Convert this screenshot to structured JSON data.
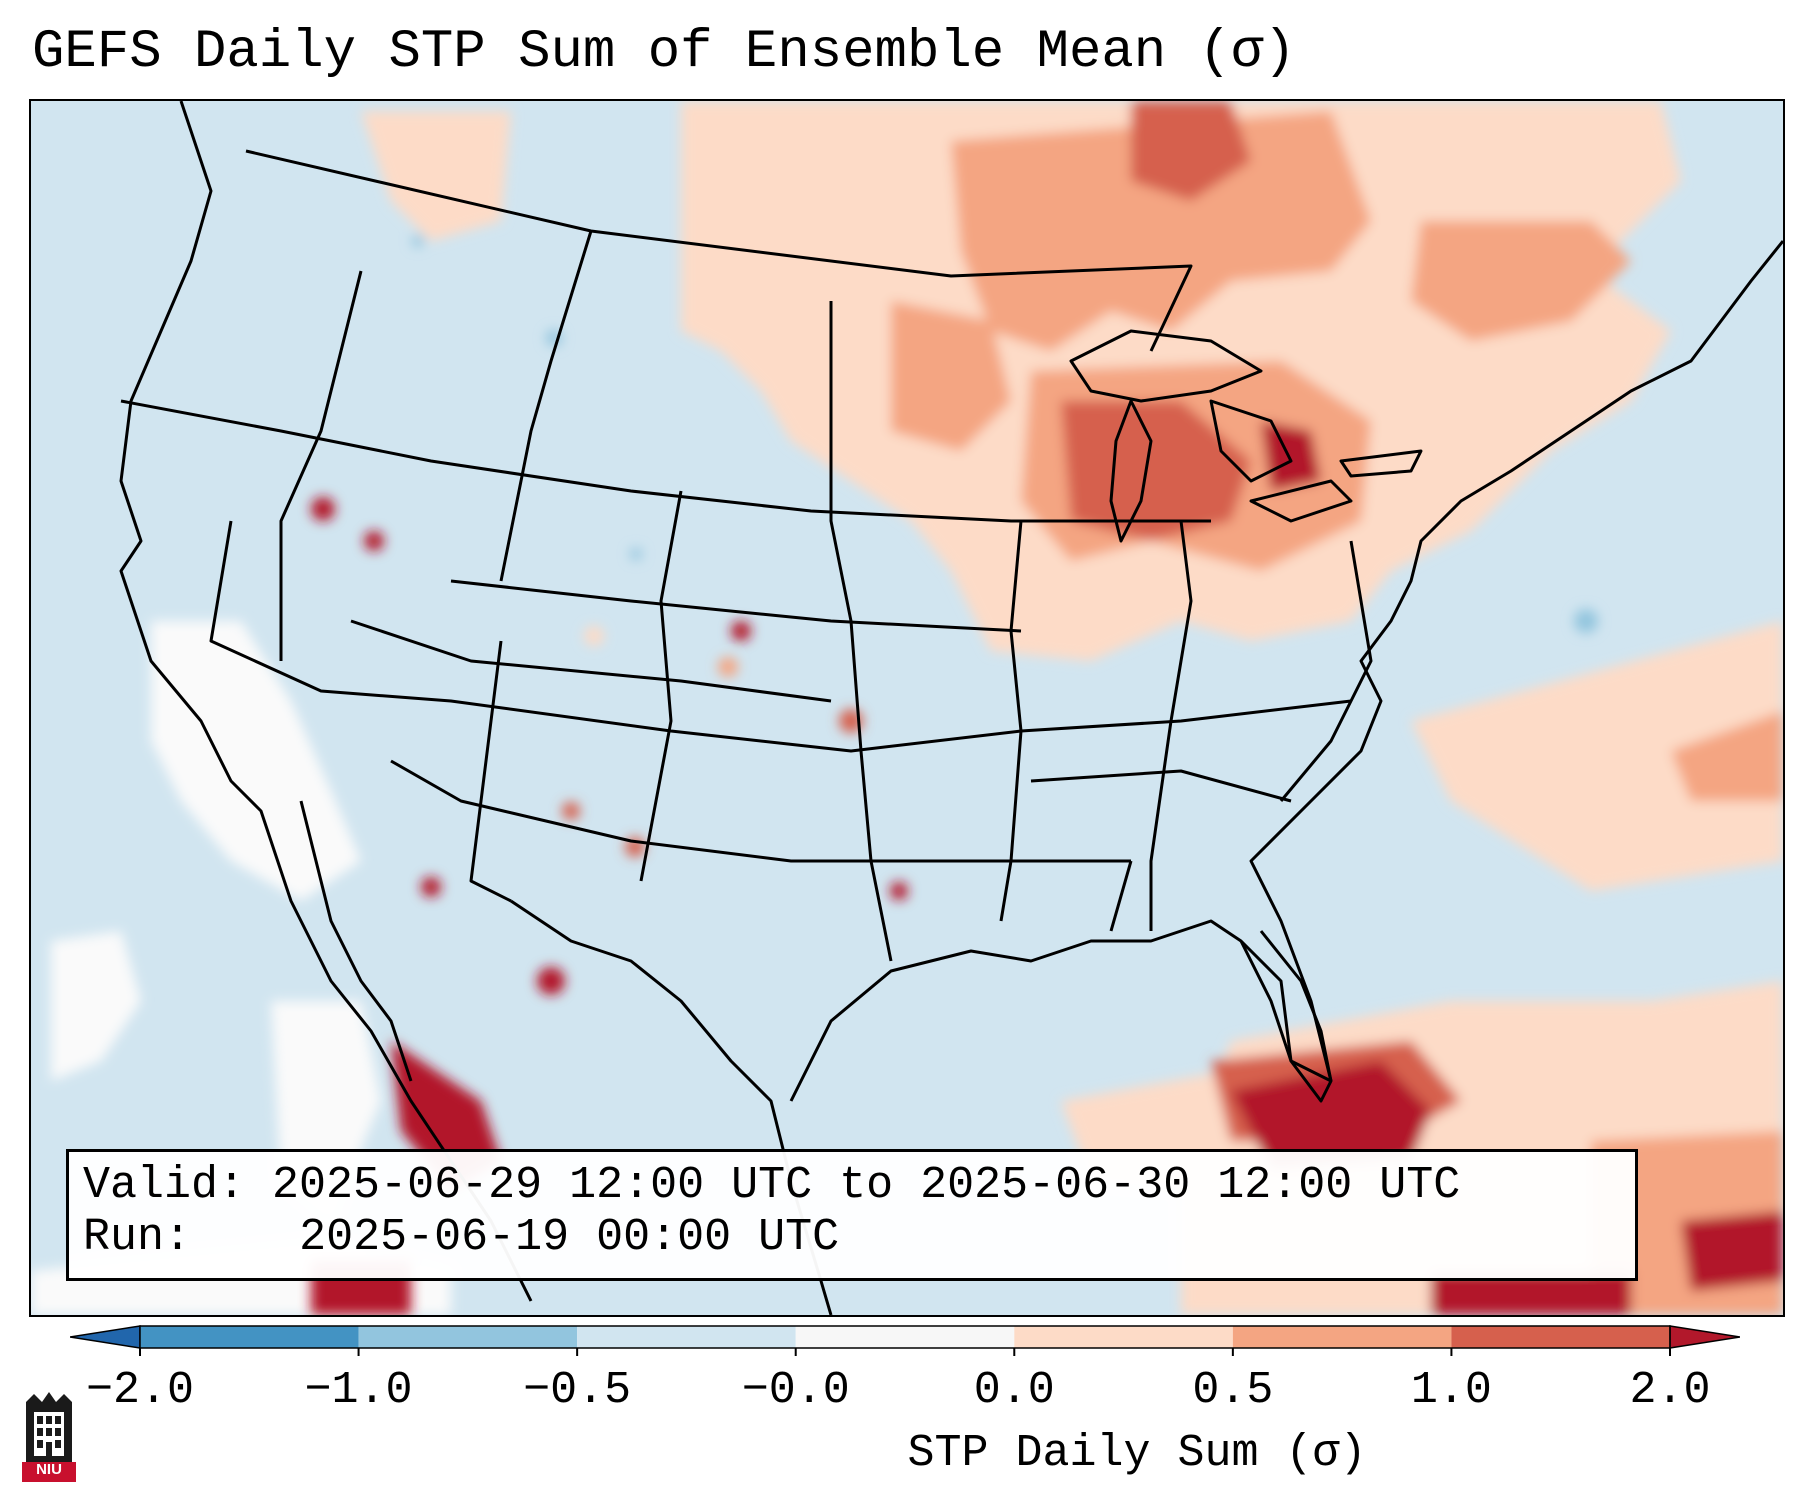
{
  "title": "GEFS Daily STP Sum of Ensemble Mean (σ)",
  "legend": {
    "valid_label": "Valid:",
    "valid_value": "2025-06-29 12:00 UTC to 2025-06-30 12:00 UTC",
    "run_label": "Run:",
    "run_value": "2025-06-19 00:00 UTC"
  },
  "colorbar": {
    "label": "STP Daily Sum (σ)",
    "ticks": [
      "−2.0",
      "−1.0",
      "−0.5",
      "−0.0",
      "0.0",
      "0.5",
      "1.0",
      "2.0"
    ],
    "bins": [
      {
        "range": "<-2.0",
        "color": "#2166ac"
      },
      {
        "range": "-2.0 to -1.0",
        "color": "#4393c3"
      },
      {
        "range": "-1.0 to -0.5",
        "color": "#92c5de"
      },
      {
        "range": "-0.5 to -0.0",
        "color": "#d1e5f0"
      },
      {
        "range": "-0.0 to 0.0",
        "color": "#f7f7f7"
      },
      {
        "range": "0.0 to 0.5",
        "color": "#fddbc7"
      },
      {
        "range": "0.5 to 1.0",
        "color": "#f4a582"
      },
      {
        "range": "1.0 to 2.0",
        "color": "#d6604d"
      },
      {
        "range": ">2.0",
        "color": "#b2182b"
      }
    ]
  },
  "map": {
    "region": "Contiguous United States",
    "ocean_color": "#d1e5f0",
    "hotspots": [
      {
        "area": "Upper Midwest / Great Lakes",
        "level": "1.0 to 2.0"
      },
      {
        "area": "Northeastern Gulf of Mexico",
        "level": ">2.0"
      },
      {
        "area": "Gulf of California",
        "level": ">2.0"
      },
      {
        "area": "Ontario / Quebec",
        "level": "0.5 to 1.0"
      }
    ]
  },
  "logo": {
    "text": "NIU"
  }
}
